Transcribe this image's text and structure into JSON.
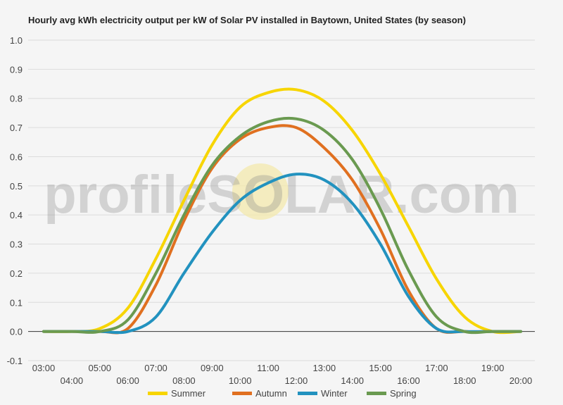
{
  "chart_data": {
    "type": "line",
    "title": "Hourly avg kWh electricity output per kW of Solar PV installed in Baytown, United States (by season)",
    "xlabel": "",
    "ylabel": "",
    "ylim": [
      -0.1,
      1.0
    ],
    "yticks": [
      "-0.1",
      "0.0",
      "0.1",
      "0.2",
      "0.3",
      "0.4",
      "0.5",
      "0.6",
      "0.7",
      "0.8",
      "0.9",
      "1.0"
    ],
    "categories": [
      "03:00",
      "04:00",
      "05:00",
      "06:00",
      "07:00",
      "08:00",
      "09:00",
      "10:00",
      "11:00",
      "12:00",
      "13:00",
      "14:00",
      "15:00",
      "16:00",
      "17:00",
      "18:00",
      "19:00",
      "20:00"
    ],
    "grid": true,
    "legend_position": "bottom",
    "watermark": "profileSOLAR.com",
    "series": [
      {
        "name": "Summer",
        "color": "#f7d500",
        "values": [
          0,
          0,
          0.01,
          0.08,
          0.25,
          0.45,
          0.64,
          0.77,
          0.82,
          0.83,
          0.79,
          0.69,
          0.54,
          0.36,
          0.18,
          0.05,
          0,
          0
        ]
      },
      {
        "name": "Autumn",
        "color": "#e07020",
        "values": [
          0,
          0,
          0,
          0.01,
          0.16,
          0.38,
          0.56,
          0.66,
          0.7,
          0.7,
          0.63,
          0.52,
          0.35,
          0.14,
          0.01,
          0,
          0,
          0
        ]
      },
      {
        "name": "Winter",
        "color": "#2292bf",
        "values": [
          0,
          0,
          0,
          0,
          0.05,
          0.2,
          0.34,
          0.45,
          0.51,
          0.54,
          0.52,
          0.44,
          0.3,
          0.12,
          0.01,
          0,
          0,
          0
        ]
      },
      {
        "name": "Spring",
        "color": "#6a9a50",
        "values": [
          0,
          0,
          0,
          0.04,
          0.2,
          0.4,
          0.57,
          0.67,
          0.72,
          0.73,
          0.69,
          0.59,
          0.42,
          0.21,
          0.05,
          0,
          0,
          0
        ]
      }
    ]
  }
}
